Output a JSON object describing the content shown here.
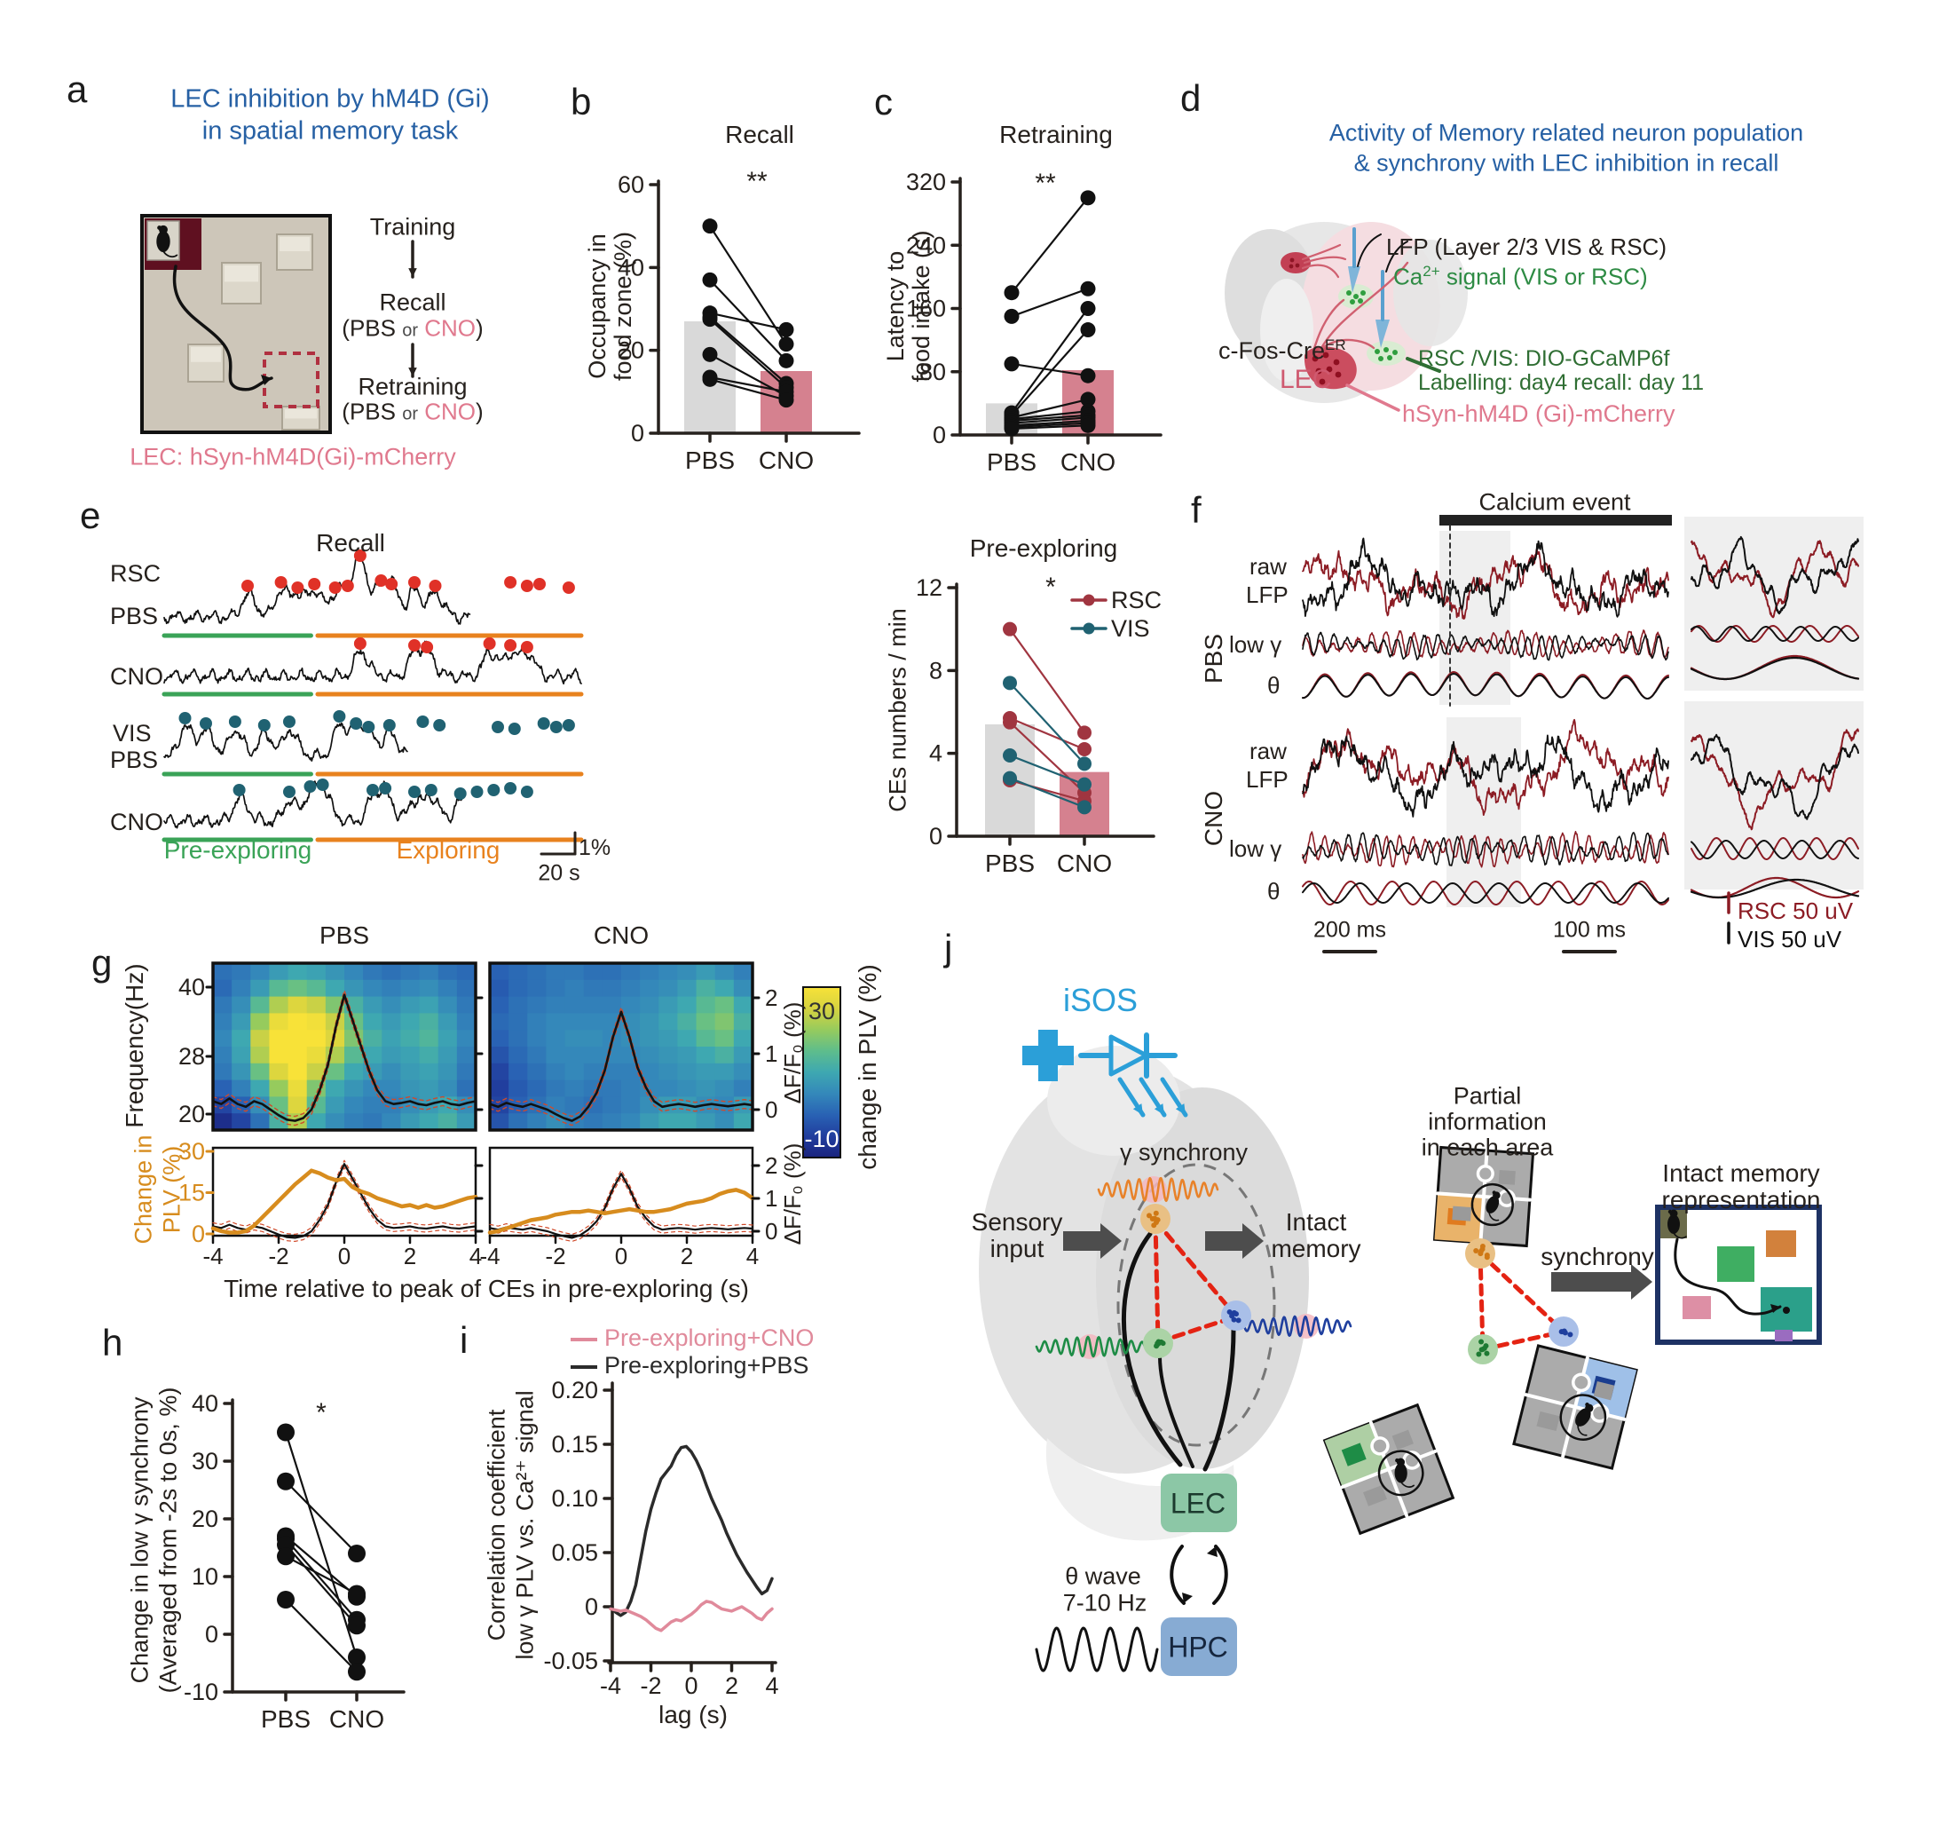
{
  "colors": {
    "accent_blue": "#2660a4",
    "pink": "#e0798e",
    "cno_bar": "#d5818f",
    "pbs_bar": "#d9d9d9",
    "rsc": "#a03540",
    "vis": "#206272",
    "event_red": "#e03127",
    "pre_green": "#3aa357",
    "explore_orange": "#e8821e",
    "plv_orange": "#d78c1e",
    "isos_blue": "#2b9fd8",
    "lec_box": "#8cc7a6",
    "hpc_box": "#87abd3",
    "red_dash": "#e42313",
    "legend_pink": "#e08a9b",
    "dark_red_trace": "#8c1c24",
    "black": "#2b2b2b",
    "axis": "#26211d"
  },
  "panel_letters": {
    "a": "a",
    "b": "b",
    "c": "c",
    "d": "d",
    "e": "e",
    "f": "f",
    "g": "g",
    "h": "h",
    "i": "i",
    "j": "j"
  },
  "a": {
    "title1": "LEC inhibition by hM4D (Gi)",
    "title2": "in spatial memory task",
    "flow_training": "Training",
    "flow_recall": "Recall",
    "flow_retraining": "Retraining",
    "pbs_prefix": "(PBS",
    "or_word": "or",
    "cno_word": "CNO",
    "paren_close": ")",
    "caption": "LEC: hSyn-hM4D(Gi)-mCherry"
  },
  "d": {
    "title1": "Activity of Memory related neuron population",
    "title2": "& synchrony with LEC inhibition in recall",
    "lfp_label": "LFP (Layer 2/3 VIS & RSC)",
    "ca_pre": "Ca",
    "ca_sup": "2+",
    "ca_post": " signal (VIS or RSC)",
    "cfos_pre": "c-Fos-Cre",
    "cfos_sup": "ER",
    "lec_label": "LEC",
    "gcamp_label": "RSC /VIS: DIO-GCaMP6f",
    "labelling_label": "Labelling: day4 recall: day 11",
    "hsyn_label": "hSyn-hM4D (Gi)-mCherry"
  },
  "e": {
    "title": "Recall",
    "row_rsc": "RSC",
    "row_vis": "VIS",
    "row_pbs": "PBS",
    "row_cno": "CNO",
    "pre_label": "Pre-exploring",
    "explore_label": "Exploring",
    "scale_amp": "1%",
    "scale_time": "20 s"
  },
  "f": {
    "title": "Calcium event",
    "group1": "PBS",
    "group2": "CNO",
    "row_raw1": "raw",
    "row_raw2": "LFP",
    "row_gamma": "low γ",
    "row_theta": "θ",
    "scale1": "200 ms",
    "scale2": "100 ms",
    "legend_rsc": "RSC 50  uV",
    "legend_vis": "VIS  50 uV"
  },
  "j": {
    "isos": "iSOS",
    "gamma_sync": "γ synchrony",
    "sensory1": "Sensory",
    "sensory2": "input",
    "intact1": "Intact",
    "intact2": "memory",
    "lec": "LEC",
    "hpc": "HPC",
    "theta1": "θ wave",
    "theta2": "7-10 Hz",
    "partial1": "Partial",
    "partial2": "information",
    "partial3": "in each area",
    "synchrony": "synchrony",
    "intact_rep1": "Intact memory",
    "intact_rep2": "representation"
  },
  "chart_data": [
    {
      "id": "b",
      "type": "paired_scatter_bar",
      "title": "Recall",
      "sig": "**",
      "ylabel_lines": [
        "Occupancy in",
        "food zone (%)"
      ],
      "ylim": [
        0,
        60
      ],
      "yticks": [
        0,
        20,
        40,
        60
      ],
      "categories": [
        "PBS",
        "CNO"
      ],
      "bar_means": [
        27,
        15
      ],
      "pairs": [
        [
          50,
          21.5
        ],
        [
          37,
          17.5
        ],
        [
          29,
          25
        ],
        [
          28,
          12
        ],
        [
          27.5,
          11
        ],
        [
          19,
          9
        ],
        [
          13.5,
          10
        ],
        [
          13,
          8
        ]
      ]
    },
    {
      "id": "c",
      "type": "paired_scatter_bar",
      "title": "Retraining",
      "sig": "**",
      "ylabel_lines": [
        "Latency to",
        "food intake (s)"
      ],
      "ylim": [
        0,
        320
      ],
      "yticks": [
        0,
        80,
        160,
        240,
        320
      ],
      "categories": [
        "PBS",
        "CNO"
      ],
      "bar_means": [
        40,
        82
      ],
      "pairs": [
        [
          180,
          300
        ],
        [
          150,
          185
        ],
        [
          90,
          75
        ],
        [
          28,
          160
        ],
        [
          25,
          133
        ],
        [
          22,
          45
        ],
        [
          20,
          30
        ],
        [
          18,
          25
        ],
        [
          15,
          22
        ],
        [
          12,
          18
        ],
        [
          10,
          15
        ],
        [
          8,
          12
        ]
      ]
    },
    {
      "id": "e_traces",
      "type": "calcium_traces",
      "rows": [
        {
          "region": "RSC",
          "treatment": "PBS",
          "dot": "event_red",
          "events": [
            [
              0.2,
              26
            ],
            [
              0.28,
              30
            ],
            [
              0.32,
              24
            ],
            [
              0.36,
              28
            ],
            [
              0.41,
              24
            ],
            [
              0.44,
              26
            ],
            [
              0.47,
              60
            ],
            [
              0.52,
              32
            ],
            [
              0.545,
              28
            ],
            [
              0.6,
              30
            ],
            [
              0.65,
              26
            ],
            [
              0.83,
              30
            ],
            [
              0.87,
              26
            ],
            [
              0.9,
              28
            ],
            [
              0.97,
              24
            ]
          ]
        },
        {
          "region": "RSC",
          "treatment": "CNO",
          "dot": "event_red",
          "events": [
            [
              0.47,
              28
            ],
            [
              0.6,
              26
            ],
            [
              0.63,
              24
            ],
            [
              0.78,
              28
            ],
            [
              0.83,
              26
            ],
            [
              0.87,
              24
            ]
          ]
        },
        {
          "region": "VIS",
          "treatment": "PBS",
          "dot": "vis",
          "events": [
            [
              0.05,
              34
            ],
            [
              0.1,
              28
            ],
            [
              0.17,
              30
            ],
            [
              0.24,
              26
            ],
            [
              0.3,
              30
            ],
            [
              0.42,
              36
            ],
            [
              0.46,
              28
            ],
            [
              0.49,
              24
            ],
            [
              0.54,
              26
            ],
            [
              0.62,
              30
            ],
            [
              0.66,
              26
            ],
            [
              0.8,
              24
            ],
            [
              0.84,
              22
            ],
            [
              0.91,
              28
            ],
            [
              0.94,
              24
            ],
            [
              0.97,
              26
            ]
          ]
        },
        {
          "region": "VIS",
          "treatment": "CNO",
          "dot": "vis",
          "events": [
            [
              0.18,
              26
            ],
            [
              0.3,
              24
            ],
            [
              0.35,
              30
            ],
            [
              0.38,
              32
            ],
            [
              0.5,
              26
            ],
            [
              0.53,
              28
            ],
            [
              0.6,
              24
            ],
            [
              0.64,
              26
            ],
            [
              0.71,
              22
            ],
            [
              0.75,
              24
            ],
            [
              0.79,
              26
            ],
            [
              0.83,
              28
            ],
            [
              0.87,
              24
            ]
          ]
        }
      ],
      "phases": [
        "Pre-exploring",
        "Exploring"
      ],
      "scale_amp": "1%",
      "scale_time": "20 s"
    },
    {
      "id": "e_rate",
      "type": "paired_scatter_bar_series",
      "title": "Pre-exploring",
      "sig": "*",
      "ylabel_lines": [
        "CEs numbers / min"
      ],
      "ylim": [
        0,
        12
      ],
      "yticks": [
        0,
        4,
        8,
        12
      ],
      "categories": [
        "PBS",
        "CNO"
      ],
      "bar_means": [
        5.4,
        3.1
      ],
      "series": [
        {
          "name": "RSC",
          "color_key": "rsc",
          "pairs": [
            [
              10,
              5
            ],
            [
              5.7,
              4.2
            ],
            [
              5.5,
              2.1
            ],
            [
              2.7,
              1.7
            ]
          ]
        },
        {
          "name": "VIS",
          "color_key": "vis",
          "pairs": [
            [
              7.4,
              3.5
            ],
            [
              3.9,
              2.5
            ],
            [
              2.8,
              1.4
            ]
          ]
        }
      ]
    },
    {
      "id": "g",
      "type": "heatmap_line",
      "col_titles": [
        "PBS",
        "CNO"
      ],
      "freq_label": "Frequency(Hz)",
      "freq_ticks": [
        40,
        28,
        20
      ],
      "xticks": [
        -4,
        -2,
        0,
        2,
        4
      ],
      "xlabel": "Time relative to peak of CEs in pre-exploring (s)",
      "colorbar": {
        "label": "change in PLV (%)",
        "max": 30,
        "min": -10
      },
      "plv_label_lines": [
        "Change in",
        "PLV (%)"
      ],
      "plv_ticks": [
        0,
        15,
        30
      ],
      "dff_label": "ΔF/F₀ (%)",
      "dff_ticks": [
        0,
        1,
        2
      ],
      "t_start": -4,
      "t_step": 0.25,
      "heatmap_pbs": [
        [
          2,
          3,
          5,
          8,
          10,
          9,
          7,
          5,
          3,
          2,
          3,
          4,
          2,
          1
        ],
        [
          1,
          4,
          8,
          14,
          16,
          14,
          10,
          7,
          5,
          4,
          5,
          6,
          4,
          2
        ],
        [
          3,
          6,
          14,
          22,
          26,
          24,
          18,
          12,
          8,
          6,
          8,
          9,
          6,
          3
        ],
        [
          4,
          8,
          20,
          28,
          30,
          29,
          24,
          16,
          10,
          8,
          10,
          12,
          8,
          4
        ],
        [
          5,
          10,
          24,
          30,
          30,
          30,
          26,
          18,
          12,
          9,
          11,
          13,
          9,
          5
        ],
        [
          4,
          9,
          22,
          30,
          30,
          28,
          22,
          14,
          10,
          8,
          9,
          11,
          8,
          4
        ],
        [
          3,
          7,
          16,
          26,
          30,
          24,
          16,
          10,
          8,
          6,
          8,
          9,
          7,
          3
        ],
        [
          0,
          4,
          10,
          20,
          28,
          18,
          10,
          7,
          5,
          5,
          7,
          8,
          6,
          2
        ],
        [
          -4,
          0,
          6,
          16,
          26,
          14,
          8,
          5,
          4,
          4,
          6,
          8,
          10,
          6
        ],
        [
          -8,
          -4,
          2,
          12,
          22,
          10,
          6,
          4,
          3,
          5,
          8,
          10,
          12,
          8
        ]
      ],
      "heatmap_cno": [
        [
          0,
          1,
          2,
          3,
          3,
          2,
          2,
          3,
          4,
          5,
          6,
          8,
          6,
          4
        ],
        [
          -1,
          1,
          2,
          3,
          4,
          3,
          3,
          4,
          5,
          6,
          8,
          12,
          10,
          6
        ],
        [
          0,
          2,
          3,
          4,
          4,
          4,
          4,
          5,
          6,
          8,
          10,
          14,
          16,
          10
        ],
        [
          1,
          2,
          4,
          5,
          5,
          5,
          5,
          6,
          7,
          9,
          12,
          16,
          18,
          12
        ],
        [
          0,
          2,
          4,
          5,
          6,
          6,
          5,
          6,
          7,
          8,
          10,
          14,
          16,
          10
        ],
        [
          -2,
          1,
          3,
          5,
          5,
          5,
          5,
          5,
          6,
          7,
          8,
          10,
          12,
          8
        ],
        [
          -4,
          0,
          2,
          4,
          5,
          4,
          4,
          4,
          5,
          6,
          7,
          8,
          8,
          6
        ],
        [
          -5,
          -1,
          1,
          3,
          4,
          3,
          3,
          4,
          5,
          5,
          6,
          7,
          6,
          4
        ],
        [
          -4,
          0,
          2,
          4,
          3,
          2,
          3,
          4,
          6,
          8,
          8,
          6,
          5,
          8
        ],
        [
          -2,
          2,
          4,
          6,
          4,
          3,
          4,
          5,
          8,
          10,
          10,
          8,
          6,
          10
        ]
      ],
      "dff_pbs": [
        0.15,
        0.1,
        0.2,
        0.1,
        0.05,
        0.15,
        0.1,
        0,
        -0.1,
        -0.18,
        -0.2,
        -0.15,
        0,
        0.35,
        0.8,
        1.5,
        2.05,
        1.6,
        1.15,
        0.7,
        0.35,
        0.15,
        0.1,
        0.12,
        0.15,
        0.1,
        0.08,
        0.12,
        0.15,
        0.1,
        0.08,
        0.12,
        0.15
      ],
      "dff_cno": [
        0.1,
        0.05,
        0.12,
        0.08,
        0.05,
        0.1,
        0.05,
        0,
        -0.08,
        -0.15,
        -0.2,
        -0.12,
        0.05,
        0.3,
        0.7,
        1.3,
        1.75,
        1.3,
        0.75,
        0.4,
        0.15,
        0.05,
        0.08,
        0.1,
        0.08,
        0.05,
        0.08,
        0.1,
        0.08,
        0.06,
        0.08,
        0.1,
        0.08
      ],
      "plv_pbs": [
        2,
        1,
        0.5,
        0.5,
        1,
        3,
        6,
        9,
        12,
        15,
        18,
        20.5,
        23,
        22,
        20.5,
        19.5,
        20,
        17,
        15.5,
        14.5,
        13,
        12,
        11,
        10,
        10.5,
        9.5,
        10.5,
        9.5,
        10,
        11,
        12,
        13,
        13.5
      ],
      "plv_cno": [
        0.5,
        1,
        2,
        3,
        4,
        5,
        5.5,
        6,
        7,
        7.5,
        8,
        8,
        8.5,
        8,
        7.5,
        8,
        8.5,
        9,
        8.5,
        8,
        8,
        8.5,
        9,
        10,
        11,
        11.5,
        12,
        13,
        14.5,
        15.5,
        16,
        15,
        13
      ]
    },
    {
      "id": "h",
      "type": "paired_scatter",
      "sig": "*",
      "ylabel_lines": [
        "Change in low γ synchrony",
        "(Averaged from -2s to 0s, %)"
      ],
      "ylim": [
        -10,
        40
      ],
      "yticks": [
        -10,
        0,
        10,
        20,
        30,
        40
      ],
      "categories": [
        "PBS",
        "CNO"
      ],
      "pairs": [
        [
          35,
          -4
        ],
        [
          26.5,
          14
        ],
        [
          17,
          6.5
        ],
        [
          16.5,
          2.5
        ],
        [
          15.5,
          1.5
        ],
        [
          13.5,
          7
        ],
        [
          6,
          -6.5
        ]
      ]
    },
    {
      "id": "i",
      "type": "line",
      "ylabel_lines": [
        "Correlation coefficient",
        "low γ PLV vs. Ca²⁺ signal"
      ],
      "ylim": [
        -0.05,
        0.2
      ],
      "ytick_vals": [
        0.2,
        0.15,
        0.1,
        0.05,
        0,
        -0.05
      ],
      "ytick_labels": [
        "0.20",
        "0.15",
        "0.10",
        "0.05",
        "0",
        "-0.05"
      ],
      "xticks": [
        -4,
        -2,
        0,
        2,
        4
      ],
      "xlabel": "lag (s)",
      "legend": [
        {
          "label": "Pre-exploring+CNO",
          "color_key": "legend_pink"
        },
        {
          "label": "Pre-exploring+PBS",
          "color_key": "black"
        }
      ],
      "t_start": -4,
      "t_step": 0.25,
      "series": [
        {
          "name": "Pre-exploring+PBS",
          "color_key": "black",
          "y": [
            0,
            -0.005,
            -0.008,
            -0.005,
            0.005,
            0.02,
            0.045,
            0.07,
            0.09,
            0.105,
            0.118,
            0.124,
            0.13,
            0.14,
            0.147,
            0.148,
            0.143,
            0.135,
            0.125,
            0.112,
            0.1,
            0.09,
            0.08,
            0.068,
            0.058,
            0.048,
            0.04,
            0.032,
            0.025,
            0.018,
            0.012,
            0.015,
            0.026
          ]
        },
        {
          "name": "Pre-exploring+CNO",
          "color_key": "legend_pink",
          "y": [
            -0.002,
            -0.003,
            -0.004,
            -0.003,
            -0.005,
            -0.007,
            -0.009,
            -0.012,
            -0.016,
            -0.02,
            -0.022,
            -0.018,
            -0.014,
            -0.012,
            -0.013,
            -0.01,
            -0.007,
            -0.003,
            0.002,
            0.005,
            0.004,
            0.001,
            -0.002,
            -0.003,
            -0.004,
            -0.002,
            0,
            -0.003,
            -0.006,
            -0.01,
            -0.012,
            -0.006,
            -0.002
          ]
        }
      ]
    },
    {
      "id": "f",
      "type": "lfp_traces",
      "title": "Calcium event",
      "groups": [
        "PBS",
        "CNO"
      ],
      "rows": [
        "raw LFP",
        "low γ",
        "θ"
      ],
      "scalebars": [
        "200 ms",
        "100 ms"
      ],
      "legend": [
        {
          "label": "RSC 50  uV",
          "color_key": "dark_red_trace"
        },
        {
          "label": "VIS  50 uV",
          "color_key": "black"
        }
      ]
    }
  ]
}
